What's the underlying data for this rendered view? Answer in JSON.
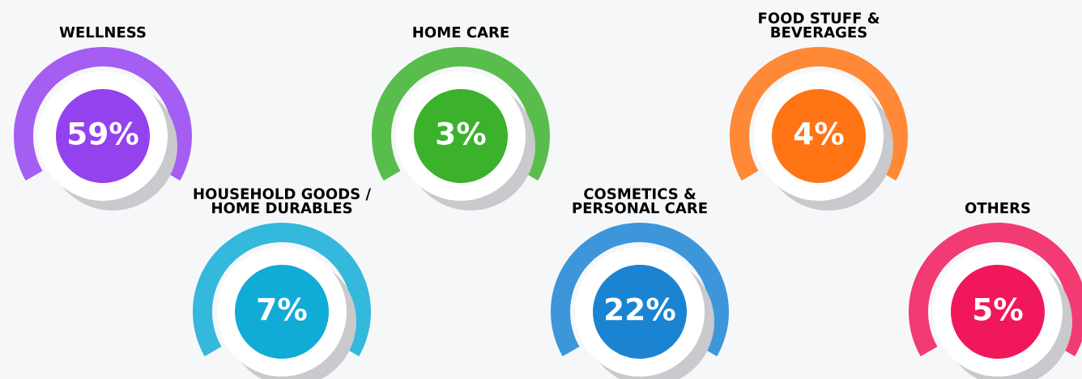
{
  "chart_data": {
    "type": "other",
    "categories": [
      "WELLNESS",
      "HOUSEHOLD GOODS /\nHOME DURABLES",
      "HOME CARE",
      "COSMETICS &\nPERSONAL CARE",
      "FOOD STUFF &\nBEVERAGES",
      "OTHERS"
    ],
    "values": [
      59,
      7,
      3,
      22,
      4,
      5
    ],
    "value_labels": [
      "59%",
      "7%",
      "3%",
      "22%",
      "4%",
      "5%"
    ],
    "colors": [
      "#9442ee",
      "#10acd6",
      "#3bb12c",
      "#1b84d2",
      "#ff7414",
      "#f0175a"
    ]
  }
}
